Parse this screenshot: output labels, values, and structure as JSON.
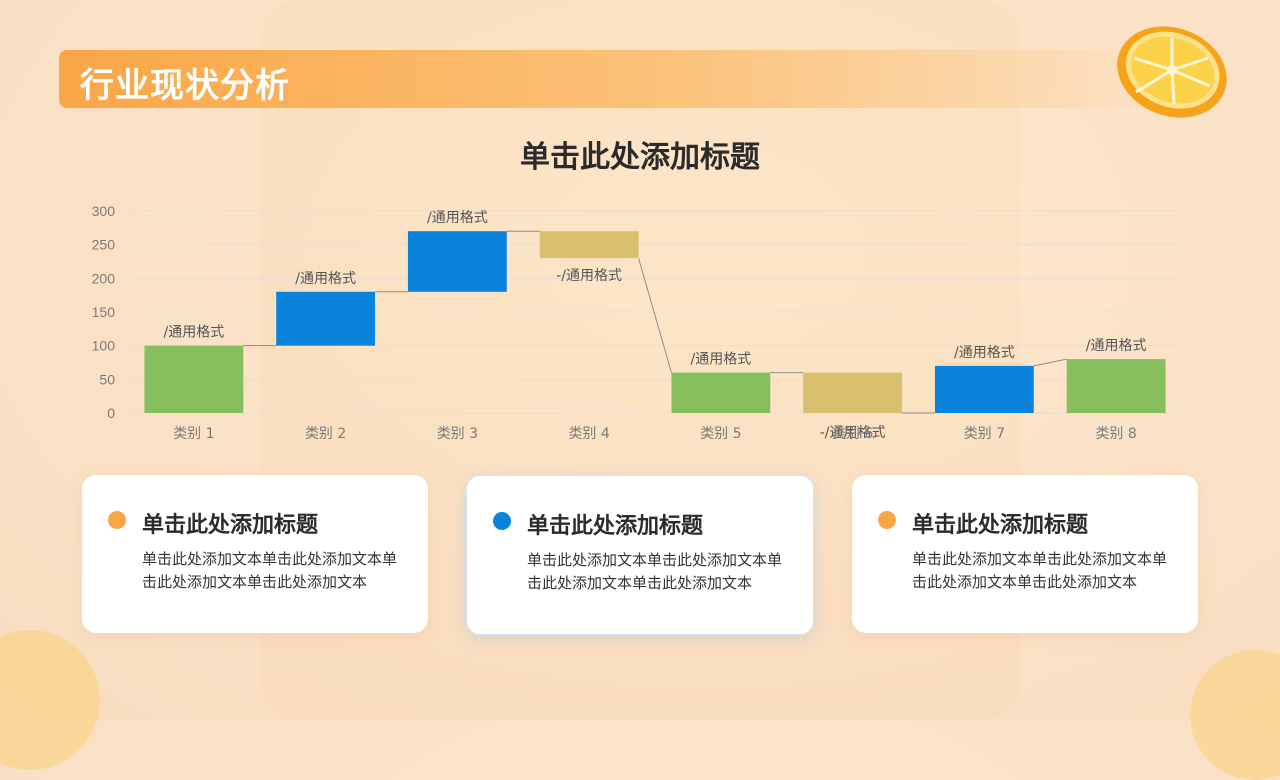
{
  "header": {
    "title": "行业现状分析"
  },
  "colors": {
    "accent_orange": "#f9a646",
    "increase": "#0a83dc",
    "decrease": "#d7bf6d",
    "total": "#87bf5e",
    "dot_orange": "#f9a646",
    "dot_blue": "#0a83dc"
  },
  "chart_data": {
    "type": "waterfall",
    "title": "单击此处添加标题",
    "categories": [
      "类别 1",
      "类别 2",
      "类别 3",
      "类别 4",
      "类别 5",
      "类别 6",
      "类别 7",
      "类别 8"
    ],
    "bars": [
      {
        "kind": "total",
        "start": 0,
        "end": 100,
        "label": "/通用格式"
      },
      {
        "kind": "increase",
        "start": 100,
        "end": 180,
        "label": "/通用格式"
      },
      {
        "kind": "increase",
        "start": 180,
        "end": 270,
        "label": "/通用格式"
      },
      {
        "kind": "decrease",
        "start": 270,
        "end": 230,
        "label": "-/通用格式"
      },
      {
        "kind": "total",
        "start": 0,
        "end": 60,
        "label": "/通用格式"
      },
      {
        "kind": "decrease",
        "start": 60,
        "end": 0,
        "label": "-/通用格式"
      },
      {
        "kind": "increase",
        "start": 0,
        "end": 70,
        "label": "/通用格式"
      },
      {
        "kind": "total",
        "start": 0,
        "end": 80,
        "label": "/通用格式"
      }
    ],
    "yticks": [
      0,
      50,
      100,
      150,
      200,
      250,
      300
    ],
    "ylim": [
      0,
      300
    ],
    "grid": true
  },
  "cards": [
    {
      "title": "单击此处添加标题",
      "text": "单击此处添加文本单击此处添加文本单击此处添加文本单击此处添加文本",
      "dot": "orange"
    },
    {
      "title": "单击此处添加标题",
      "text": "单击此处添加文本单击此处添加文本单击此处添加文本单击此处添加文本",
      "dot": "blue"
    },
    {
      "title": "单击此处添加标题",
      "text": "单击此处添加文本单击此处添加文本单击此处添加文本单击此处添加文本",
      "dot": "orange"
    }
  ]
}
